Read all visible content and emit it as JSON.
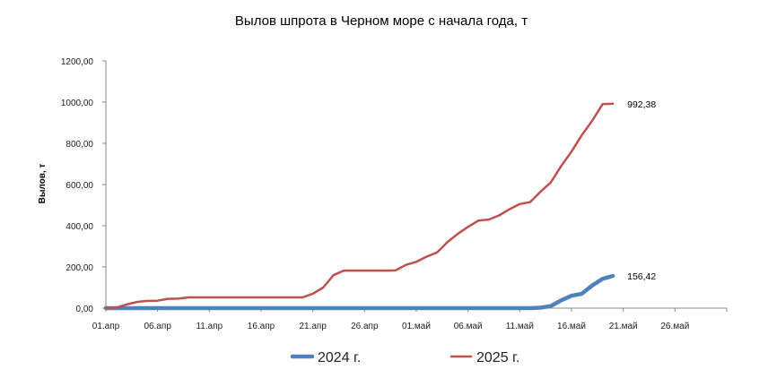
{
  "chart_data": {
    "type": "line",
    "title": "Вылов шпрота в Черном море с начала года, т",
    "ylabel": "Вылов, т",
    "xlabel": "",
    "ylim": [
      0,
      1200
    ],
    "yticks": [
      "0,00",
      "200,00",
      "400,00",
      "600,00",
      "800,00",
      "1000,00",
      "1200,00"
    ],
    "yticks_values": [
      0,
      200,
      400,
      600,
      800,
      1000,
      1200
    ],
    "xticks": [
      "01.апр",
      "06.апр",
      "11.апр",
      "16.апр",
      "21.апр",
      "26.апр",
      "01.май",
      "06.май",
      "11.май",
      "16.май",
      "21.май",
      "26.май"
    ],
    "xrange_days": [
      0,
      60
    ],
    "grid": false,
    "legend_position": "bottom",
    "series": [
      {
        "name": "2024 г.",
        "color": "#4F81BD",
        "x": [
          0,
          1,
          2,
          3,
          4,
          5,
          6,
          7,
          8,
          9,
          10,
          11,
          12,
          13,
          14,
          15,
          16,
          17,
          18,
          19,
          20,
          21,
          22,
          23,
          24,
          25,
          26,
          27,
          28,
          29,
          30,
          31,
          32,
          33,
          34,
          35,
          36,
          37,
          38,
          39,
          40,
          41,
          42,
          43,
          44,
          45,
          46,
          47,
          48,
          49
        ],
        "y": [
          0,
          0,
          0,
          0,
          0,
          0,
          0,
          0,
          0,
          0,
          0,
          0,
          0,
          0,
          0,
          0,
          0,
          0,
          0,
          0,
          0,
          0,
          0,
          0,
          0,
          0,
          0,
          0,
          0,
          0,
          0,
          0,
          0,
          0,
          0,
          0,
          0,
          0,
          0,
          0,
          0,
          0,
          2,
          10,
          38,
          60,
          70,
          110,
          142,
          156.42
        ],
        "end_label": "156,42"
      },
      {
        "name": "2025 г.",
        "color": "#C0504D",
        "x": [
          0,
          1,
          2,
          3,
          4,
          5,
          6,
          7,
          8,
          9,
          10,
          11,
          12,
          13,
          14,
          15,
          16,
          17,
          18,
          19,
          20,
          21,
          22,
          23,
          24,
          25,
          26,
          27,
          28,
          29,
          30,
          31,
          32,
          33,
          34,
          35,
          36,
          37,
          38,
          39,
          40,
          41,
          42,
          43,
          44,
          45,
          46,
          47,
          48,
          49
        ],
        "y": [
          0,
          2,
          18,
          30,
          35,
          36,
          45,
          46,
          52,
          52,
          52,
          52,
          52,
          52,
          52,
          52,
          52,
          52,
          52,
          52,
          70,
          100,
          160,
          182,
          182,
          182,
          182,
          182,
          183,
          210,
          225,
          250,
          270,
          320,
          360,
          395,
          425,
          430,
          450,
          480,
          505,
          515,
          565,
          610,
          690,
          760,
          840,
          910,
          990,
          992.38
        ],
        "end_label": "992,38"
      }
    ]
  }
}
